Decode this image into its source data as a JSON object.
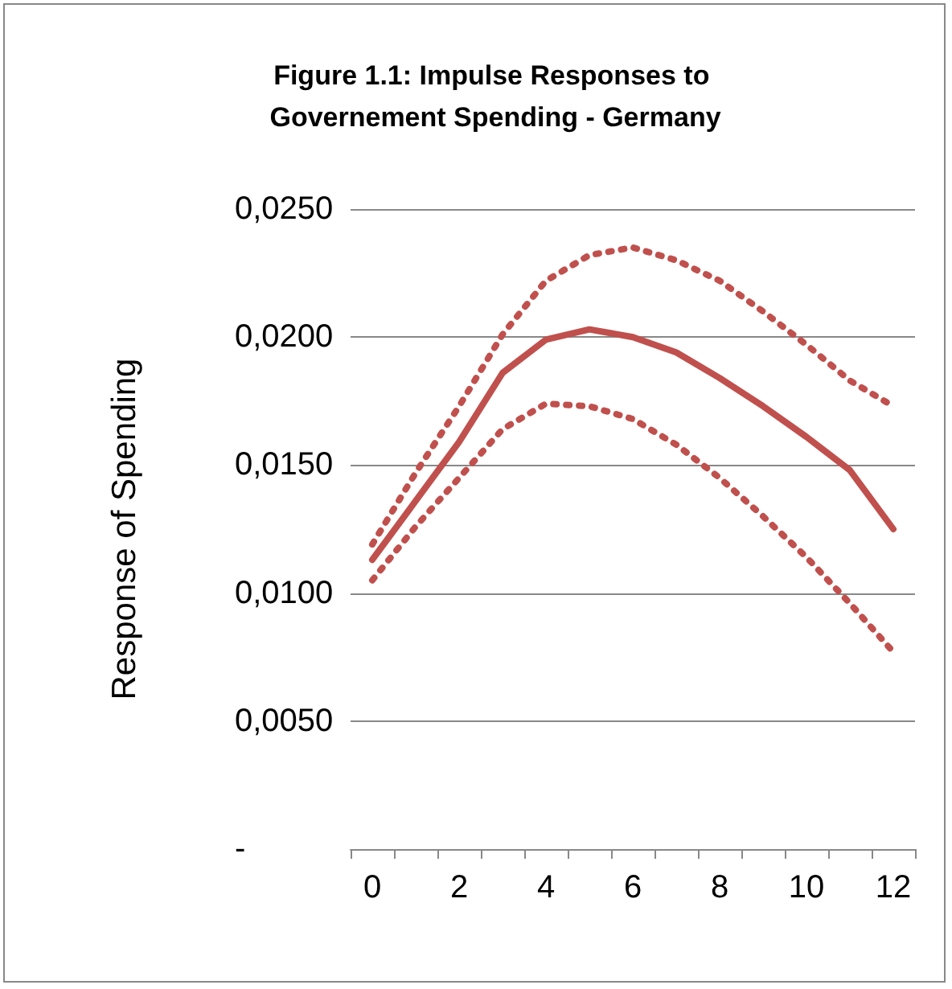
{
  "chart_data": {
    "type": "line",
    "title": "Figure 1.1: Impulse Responses to Governement Spending - Germany",
    "ylabel": "Response of Spending",
    "categories": [
      "0",
      null,
      "2",
      null,
      "4",
      null,
      "6",
      null,
      "8",
      null,
      "10",
      null,
      "12"
    ],
    "series": [
      {
        "color": "#c0504d",
        "line_style": "solid",
        "values": [
          0.0113,
          0.0136,
          0.0159,
          0.0186,
          0.0199,
          0.0203,
          0.02,
          0.0194,
          0.0184,
          0.0173,
          0.0161,
          0.0148,
          0.0125
        ]
      },
      {
        "color": "#c0504d",
        "line_style": "dotted",
        "values": [
          0.0119,
          0.0147,
          0.0173,
          0.0201,
          0.0222,
          0.0232,
          0.0235,
          0.023,
          0.0222,
          0.021,
          0.0197,
          0.0183,
          0.0173
        ]
      },
      {
        "color": "#c0504d",
        "line_style": "dotted",
        "values": [
          0.0105,
          0.0126,
          0.0145,
          0.0164,
          0.0174,
          0.0173,
          0.0168,
          0.0158,
          0.0145,
          0.013,
          0.0114,
          0.0096,
          0.0077
        ]
      }
    ],
    "ylim": [
      0,
      0.025
    ],
    "yticks": [
      {
        "value": 0,
        "label": "-"
      },
      {
        "value": 0.005,
        "label": "0,0050"
      },
      {
        "value": 0.01,
        "label": "0,0100"
      },
      {
        "value": 0.015,
        "label": "0,0150"
      },
      {
        "value": 0.02,
        "label": "0,0200"
      },
      {
        "value": 0.025,
        "label": "0,0250"
      }
    ],
    "grid": "y",
    "marker": "none"
  }
}
